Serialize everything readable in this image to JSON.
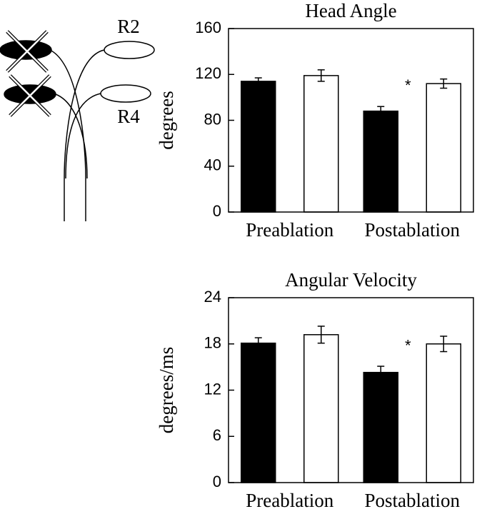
{
  "diagram": {
    "labels": [
      "R2",
      "R4"
    ]
  },
  "chart_data": [
    {
      "type": "bar",
      "title": "Head Angle",
      "y_label": "degrees",
      "categories": [
        "Preablation",
        "Postablation"
      ],
      "series": [
        {
          "color": "#000000",
          "values": [
            114,
            88
          ],
          "errors": [
            3,
            4
          ]
        },
        {
          "color": "#ffffff",
          "values": [
            119,
            112
          ],
          "errors": [
            5,
            4
          ]
        }
      ],
      "ylim": [
        0,
        160
      ],
      "yticks": [
        0,
        40,
        80,
        120,
        160
      ],
      "annotation": "*"
    },
    {
      "type": "bar",
      "title": "Angular Velocity",
      "y_label": "degrees/ms",
      "categories": [
        "Preablation",
        "Postablation"
      ],
      "series": [
        {
          "color": "#000000",
          "values": [
            18.1,
            14.3
          ],
          "errors": [
            0.7,
            0.8
          ]
        },
        {
          "color": "#ffffff",
          "values": [
            19.2,
            18.0
          ],
          "errors": [
            1.1,
            1.0
          ]
        }
      ],
      "ylim": [
        0,
        24
      ],
      "yticks": [
        0,
        6,
        12,
        18,
        24
      ],
      "annotation": "*"
    }
  ]
}
